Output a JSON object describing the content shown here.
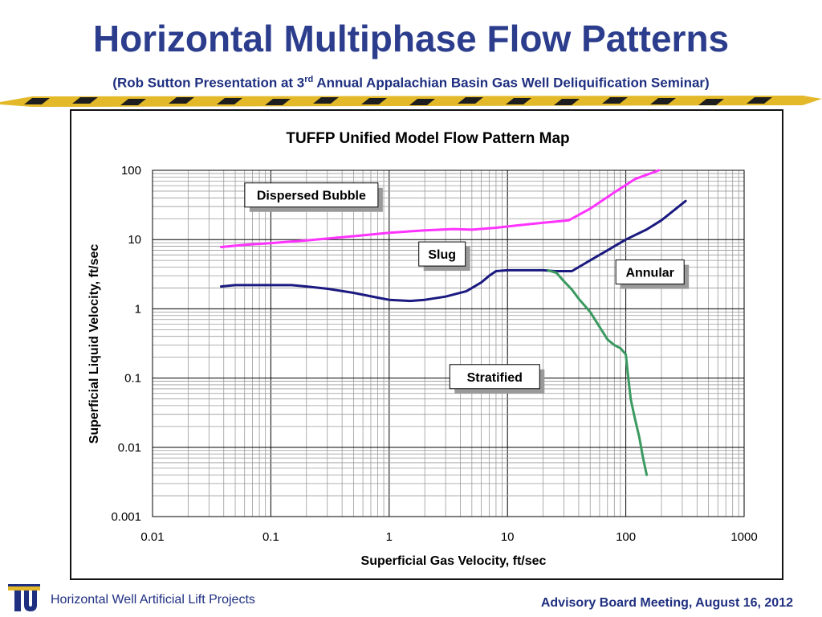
{
  "slide": {
    "title": "Horizontal Multiphase Flow Patterns",
    "subtitle_before_sup": "(Rob Sutton Presentation at 3",
    "subtitle_sup": "rd",
    "subtitle_after_sup": " Annual Appalachian Basin Gas Well Deliquification Seminar)",
    "footer_left": "Horizontal Well Artificial Lift Projects",
    "footer_right": "Advisory Board Meeting, August 16, 2012",
    "colors": {
      "title": "#2b3d8c",
      "ribbon_gold": "#e3b92a",
      "ribbon_dark": "#1e1e1e",
      "logo_blue": "#1f2f80",
      "logo_gold": "#e3b92a"
    }
  },
  "chart_data": {
    "type": "line",
    "title": "TUFFP Unified Model Flow Pattern Map",
    "xlabel": "Superficial Gas Velocity, ft/sec",
    "ylabel": "Superficial Liquid Velocity, ft/sec",
    "xscale": "log",
    "yscale": "log",
    "xlim": [
      0.01,
      1000
    ],
    "ylim": [
      0.001,
      100
    ],
    "x_ticks": [
      "0.01",
      "0.1",
      "1",
      "10",
      "100",
      "1000"
    ],
    "y_ticks": [
      "0.001",
      "0.01",
      "0.1",
      "1",
      "10",
      "100"
    ],
    "grid": true,
    "series": [
      {
        "color": "#ff33ff",
        "x": [
          0.038,
          0.06,
          0.1,
          0.2,
          0.5,
          1,
          2,
          3.5,
          5,
          8,
          12,
          20,
          33,
          50,
          80,
          120,
          190
        ],
        "y": [
          7.8,
          8.4,
          8.9,
          9.7,
          11.2,
          12.5,
          13.6,
          14.2,
          13.9,
          14.8,
          16,
          17.5,
          19,
          28,
          48,
          75,
          100
        ]
      },
      {
        "color": "#1a1a80",
        "x": [
          0.038,
          0.05,
          0.1,
          0.15,
          0.2,
          0.3,
          0.5,
          0.8,
          1,
          1.5,
          2,
          3,
          4.5,
          6,
          7,
          8,
          10,
          15,
          20,
          25,
          30,
          35,
          40,
          50,
          70,
          100,
          150,
          200,
          320
        ],
        "y": [
          2.1,
          2.2,
          2.2,
          2.2,
          2.1,
          1.95,
          1.7,
          1.45,
          1.35,
          1.3,
          1.35,
          1.5,
          1.8,
          2.4,
          3.0,
          3.5,
          3.6,
          3.6,
          3.6,
          3.5,
          3.5,
          3.5,
          4.0,
          5.0,
          7.0,
          10.0,
          14.0,
          19.0,
          36.0
        ]
      },
      {
        "color": "#3a9a60",
        "x": [
          22,
          26,
          30,
          35,
          40,
          50,
          60,
          70,
          80,
          90,
          100,
          105,
          110,
          115,
          120,
          130,
          140,
          150
        ],
        "y": [
          3.6,
          3.3,
          2.5,
          1.9,
          1.4,
          0.9,
          0.55,
          0.36,
          0.3,
          0.27,
          0.22,
          0.1,
          0.05,
          0.035,
          0.025,
          0.014,
          0.007,
          0.004
        ]
      }
    ],
    "annotations": [
      {
        "text": "Dispersed Bubble",
        "x": 0.22,
        "y": 44
      },
      {
        "text": "Slug",
        "x": 2.8,
        "y": 6.2
      },
      {
        "text": "Annular",
        "x": 160,
        "y": 3.4
      },
      {
        "text": "Stratified",
        "x": 7.8,
        "y": 0.105
      }
    ]
  }
}
